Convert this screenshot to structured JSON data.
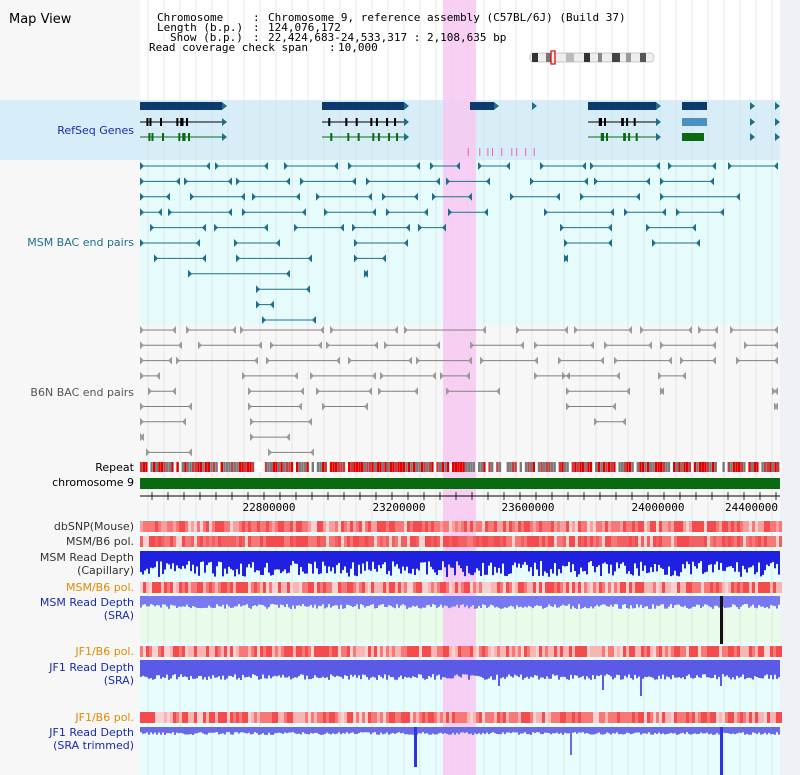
{
  "app": {
    "title": "Map View"
  },
  "header": {
    "rows": [
      {
        "label": "Chromosome",
        "value": "Chromosome 9, reference assembly (C57BL/6J) (Build 37)"
      },
      {
        "label": "Length (b.p.)",
        "value": "124,076,172"
      },
      {
        "label": "Show (b.p.)",
        "value": "22,424,683-24,533,317 : 2,108,635 bp"
      },
      {
        "label": "Read coverage check span",
        "value": "10,000"
      }
    ]
  },
  "tracks": {
    "refseq": "RefSeq Genes",
    "msm_bac": "MSM BAC end pairs",
    "b6n_bac": "B6N BAC end pairs",
    "repeat": "Repeat",
    "chromosome": "chromosome 9",
    "dbsnp": "dbSNP(Mouse)",
    "msm_b6_pol_1": "MSM/B6 pol.",
    "msm_depth_cap_1": "MSM Read Depth",
    "msm_depth_cap_2": "(Capillary)",
    "msm_b6_pol_2": "MSM/B6 pol.",
    "msm_depth_sra_1": "MSM Read Depth",
    "msm_depth_sra_2": "(SRA)",
    "jf1_b6_pol_1": "JF1/B6 pol.",
    "jf1_depth_sra_1": "JF1 Read Depth",
    "jf1_depth_sra_2": "(SRA)",
    "jf1_b6_pol_2": "JF1/B6 pol.",
    "jf1_depth_trim_1": "JF1 Read Depth",
    "jf1_depth_trim_2": "(SRA trimmed)"
  },
  "axis": {
    "ticks": [
      "22800000",
      "23200000",
      "23600000",
      "24000000",
      "24400000"
    ]
  },
  "colors": {
    "refseq_blue": "#0d3a6e",
    "bac_teal": "#1e6f8a",
    "b6n_gray": "#808080",
    "chromosome_green": "#0a6a10",
    "depth_blue": "#2a36e0",
    "highlight_pink": "#f7c8f2"
  }
}
